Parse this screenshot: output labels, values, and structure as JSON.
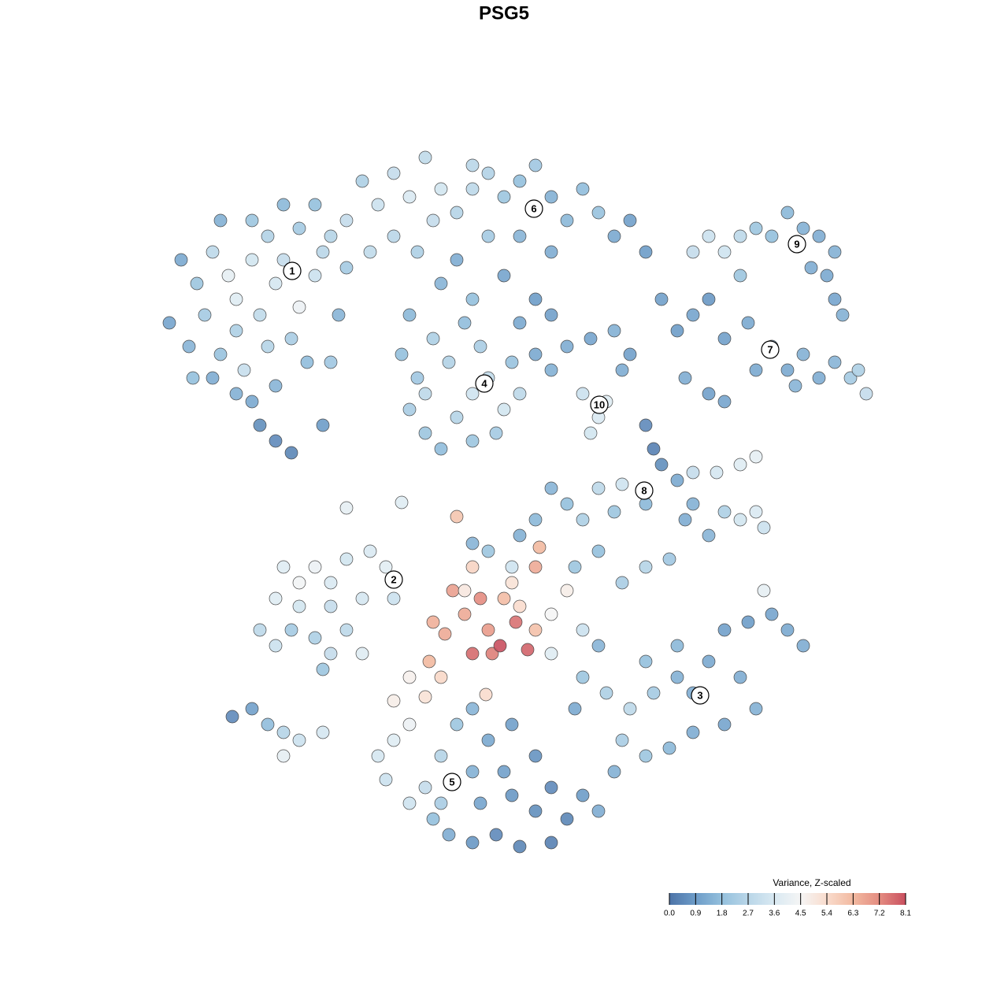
{
  "chart_data": {
    "type": "scatter",
    "title": "PSG5",
    "xlim": [
      180,
      1140
    ],
    "ylim": [
      1100,
      180
    ],
    "point_stroke": "#4a4a4a",
    "clusters": [
      {
        "label": "1",
        "x": 371,
        "y": 344
      },
      {
        "label": "2",
        "x": 500,
        "y": 736
      },
      {
        "label": "3",
        "x": 889,
        "y": 883
      },
      {
        "label": "4",
        "x": 615,
        "y": 487
      },
      {
        "label": "5",
        "x": 574,
        "y": 993
      },
      {
        "label": "6",
        "x": 678,
        "y": 265
      },
      {
        "label": "7",
        "x": 978,
        "y": 444
      },
      {
        "label": "8",
        "x": 818,
        "y": 623
      },
      {
        "label": "9",
        "x": 1012,
        "y": 310
      },
      {
        "label": "10",
        "x": 761,
        "y": 514
      }
    ],
    "colorbar": {
      "title": "Variance, Z-scaled",
      "ticks": [
        {
          "value": 0,
          "label": "0.0"
        },
        0.9,
        1.8,
        2.7,
        3.6,
        4.5,
        5.4,
        6.3,
        7.2,
        8.1
      ],
      "colors": [
        "#4d74a8",
        "#6d9cc8",
        "#94c0dd",
        "#b9d6e8",
        "#d9e9f2",
        "#f5f5f5",
        "#f9dccd",
        "#f2b9a0",
        "#e48c81",
        "#c9505f"
      ]
    },
    "points": [
      [
        230,
        330,
        1.2
      ],
      [
        250,
        360,
        2.0
      ],
      [
        215,
        410,
        1.1
      ],
      [
        240,
        440,
        1.5
      ],
      [
        270,
        320,
        2.8
      ],
      [
        290,
        350,
        4.0
      ],
      [
        300,
        380,
        3.8
      ],
      [
        320,
        330,
        3.4
      ],
      [
        340,
        300,
        2.5
      ],
      [
        360,
        260,
        1.6
      ],
      [
        380,
        290,
        2.2
      ],
      [
        400,
        260,
        1.8
      ],
      [
        420,
        300,
        2.6
      ],
      [
        440,
        280,
        3.0
      ],
      [
        350,
        360,
        3.5
      ],
      [
        380,
        390,
        4.2
      ],
      [
        400,
        350,
        3.2
      ],
      [
        410,
        320,
        2.7
      ],
      [
        330,
        400,
        2.9
      ],
      [
        300,
        420,
        2.4
      ],
      [
        280,
        450,
        1.9
      ],
      [
        310,
        470,
        3.1
      ],
      [
        340,
        440,
        2.6
      ],
      [
        370,
        430,
        2.3
      ],
      [
        390,
        460,
        1.7
      ],
      [
        350,
        490,
        1.5
      ],
      [
        320,
        510,
        1.2
      ],
      [
        330,
        540,
        0.6
      ],
      [
        350,
        560,
        0.5
      ],
      [
        370,
        575,
        0.4
      ],
      [
        410,
        540,
        0.9
      ],
      [
        300,
        500,
        1.4
      ],
      [
        270,
        480,
        1.3
      ],
      [
        430,
        400,
        1.5
      ],
      [
        420,
        460,
        2.1
      ],
      [
        280,
        280,
        1.4
      ],
      [
        320,
        280,
        2.0
      ],
      [
        245,
        480,
        1.8
      ],
      [
        260,
        400,
        2.2
      ],
      [
        360,
        330,
        3.0
      ],
      [
        460,
        230,
        2.4
      ],
      [
        480,
        260,
        3.2
      ],
      [
        500,
        220,
        3.0
      ],
      [
        520,
        250,
        3.6
      ],
      [
        540,
        200,
        2.9
      ],
      [
        560,
        240,
        3.4
      ],
      [
        550,
        280,
        3.0
      ],
      [
        580,
        270,
        2.6
      ],
      [
        600,
        240,
        2.8
      ],
      [
        620,
        220,
        2.5
      ],
      [
        640,
        250,
        2.0
      ],
      [
        660,
        230,
        1.8
      ],
      [
        700,
        250,
        1.4
      ],
      [
        720,
        280,
        1.6
      ],
      [
        740,
        240,
        1.7
      ],
      [
        760,
        270,
        1.9
      ],
      [
        780,
        300,
        1.2
      ],
      [
        800,
        280,
        1.0
      ],
      [
        620,
        300,
        2.2
      ],
      [
        660,
        300,
        1.5
      ],
      [
        700,
        320,
        1.3
      ],
      [
        500,
        300,
        2.7
      ],
      [
        470,
        320,
        2.9
      ],
      [
        440,
        340,
        2.2
      ],
      [
        530,
        320,
        2.4
      ],
      [
        580,
        330,
        1.3
      ],
      [
        820,
        320,
        0.9
      ],
      [
        680,
        210,
        2.1
      ],
      [
        600,
        210,
        2.7
      ],
      [
        560,
        360,
        1.5
      ],
      [
        600,
        380,
        1.8
      ],
      [
        640,
        350,
        1.1
      ],
      [
        680,
        380,
        0.9
      ],
      [
        700,
        400,
        1.0
      ],
      [
        520,
        400,
        1.6
      ],
      [
        660,
        410,
        1.2
      ],
      [
        510,
        450,
        1.8
      ],
      [
        530,
        480,
        2.1
      ],
      [
        520,
        520,
        2.3
      ],
      [
        540,
        550,
        2.0
      ],
      [
        560,
        570,
        1.7
      ],
      [
        580,
        530,
        2.6
      ],
      [
        600,
        500,
        3.3
      ],
      [
        620,
        480,
        2.9
      ],
      [
        640,
        520,
        3.4
      ],
      [
        630,
        550,
        2.2
      ],
      [
        600,
        560,
        2.0
      ],
      [
        570,
        460,
        2.5
      ],
      [
        610,
        440,
        2.3
      ],
      [
        650,
        460,
        1.9
      ],
      [
        550,
        430,
        2.4
      ],
      [
        590,
        410,
        1.7
      ],
      [
        660,
        500,
        2.8
      ],
      [
        540,
        500,
        2.8
      ],
      [
        680,
        450,
        1.2
      ],
      [
        700,
        470,
        1.4
      ],
      [
        720,
        440,
        1.3
      ],
      [
        750,
        430,
        1.1
      ],
      [
        780,
        420,
        1.4
      ],
      [
        800,
        450,
        1.0
      ],
      [
        740,
        500,
        3.2
      ],
      [
        760,
        530,
        3.6
      ],
      [
        770,
        510,
        3.8
      ],
      [
        750,
        550,
        3.4
      ],
      [
        790,
        470,
        1.3
      ],
      [
        840,
        380,
        1.0
      ],
      [
        860,
        420,
        0.9
      ],
      [
        880,
        400,
        1.1
      ],
      [
        900,
        380,
        0.8
      ],
      [
        920,
        430,
        1.0
      ],
      [
        950,
        410,
        1.2
      ],
      [
        980,
        440,
        1.3
      ],
      [
        1000,
        470,
        1.2
      ],
      [
        1020,
        450,
        1.4
      ],
      [
        1040,
        480,
        1.3
      ],
      [
        1060,
        460,
        1.5
      ],
      [
        1080,
        480,
        2.2
      ],
      [
        1100,
        500,
        3.0
      ],
      [
        1090,
        470,
        2.4
      ],
      [
        1010,
        490,
        1.5
      ],
      [
        960,
        470,
        1.2
      ],
      [
        900,
        500,
        1.0
      ],
      [
        870,
        480,
        1.3
      ],
      [
        920,
        510,
        1.1
      ],
      [
        880,
        320,
        3.0
      ],
      [
        900,
        300,
        3.2
      ],
      [
        920,
        320,
        3.3
      ],
      [
        940,
        300,
        2.8
      ],
      [
        960,
        290,
        2.0
      ],
      [
        980,
        300,
        1.8
      ],
      [
        1000,
        270,
        1.6
      ],
      [
        1020,
        290,
        1.4
      ],
      [
        1040,
        300,
        1.3
      ],
      [
        1060,
        320,
        1.4
      ],
      [
        1050,
        350,
        1.2
      ],
      [
        1030,
        340,
        1.3
      ],
      [
        1060,
        380,
        1.1
      ],
      [
        940,
        350,
        2.0
      ],
      [
        1070,
        400,
        1.4
      ],
      [
        820,
        540,
        0.5
      ],
      [
        830,
        570,
        0.3
      ],
      [
        840,
        590,
        0.6
      ],
      [
        860,
        610,
        1.2
      ],
      [
        880,
        640,
        1.4
      ],
      [
        900,
        680,
        1.5
      ],
      [
        920,
        650,
        2.4
      ],
      [
        940,
        660,
        3.4
      ],
      [
        960,
        650,
        3.6
      ],
      [
        970,
        670,
        3.2
      ],
      [
        910,
        600,
        3.5
      ],
      [
        940,
        590,
        3.8
      ],
      [
        960,
        580,
        4.0
      ],
      [
        880,
        600,
        3.0
      ],
      [
        870,
        660,
        1.3
      ],
      [
        700,
        620,
        1.5
      ],
      [
        720,
        640,
        1.8
      ],
      [
        760,
        620,
        2.8
      ],
      [
        790,
        615,
        3.3
      ],
      [
        740,
        660,
        2.4
      ],
      [
        680,
        660,
        1.6
      ],
      [
        660,
        680,
        1.4
      ],
      [
        780,
        650,
        2.0
      ],
      [
        820,
        640,
        1.6
      ],
      [
        360,
        720,
        3.8
      ],
      [
        380,
        740,
        4.4
      ],
      [
        400,
        720,
        4.2
      ],
      [
        420,
        740,
        3.6
      ],
      [
        440,
        710,
        3.4
      ],
      [
        470,
        700,
        3.6
      ],
      [
        490,
        720,
        3.9
      ],
      [
        500,
        760,
        3.2
      ],
      [
        460,
        760,
        3.5
      ],
      [
        420,
        770,
        3.0
      ],
      [
        380,
        770,
        3.4
      ],
      [
        350,
        760,
        3.8
      ],
      [
        330,
        800,
        2.8
      ],
      [
        350,
        820,
        3.2
      ],
      [
        370,
        800,
        2.2
      ],
      [
        400,
        810,
        2.4
      ],
      [
        420,
        830,
        3.0
      ],
      [
        440,
        800,
        2.8
      ],
      [
        410,
        850,
        2.0
      ],
      [
        460,
        830,
        3.8
      ],
      [
        295,
        910,
        0.5
      ],
      [
        320,
        900,
        1.0
      ],
      [
        340,
        920,
        1.7
      ],
      [
        360,
        930,
        2.6
      ],
      [
        380,
        940,
        3.2
      ],
      [
        360,
        960,
        4.0
      ],
      [
        410,
        930,
        3.5
      ],
      [
        440,
        645,
        4.0
      ],
      [
        510,
        638,
        3.8
      ],
      [
        580,
        656,
        6.0
      ],
      [
        575,
        750,
        6.8
      ],
      [
        590,
        780,
        6.6
      ],
      [
        610,
        760,
        7.2
      ],
      [
        620,
        800,
        6.9
      ],
      [
        640,
        760,
        6.2
      ],
      [
        660,
        770,
        5.4
      ],
      [
        680,
        800,
        6.1
      ],
      [
        670,
        825,
        7.8
      ],
      [
        655,
        790,
        7.6
      ],
      [
        600,
        830,
        7.7
      ],
      [
        625,
        830,
        7.4
      ],
      [
        565,
        805,
        6.6
      ],
      [
        550,
        790,
        6.5
      ],
      [
        635,
        820,
        8.1
      ],
      [
        685,
        695,
        6.3
      ],
      [
        680,
        720,
        6.6
      ],
      [
        600,
        720,
        5.6
      ],
      [
        720,
        750,
        4.8
      ],
      [
        700,
        780,
        4.5
      ],
      [
        650,
        740,
        5.2
      ],
      [
        590,
        750,
        5.0
      ],
      [
        545,
        840,
        6.3
      ],
      [
        560,
        860,
        5.5
      ],
      [
        520,
        860,
        4.7
      ],
      [
        540,
        885,
        5.2
      ],
      [
        500,
        890,
        4.8
      ],
      [
        617,
        882,
        5.4
      ],
      [
        700,
        830,
        3.8
      ],
      [
        740,
        800,
        3.2
      ],
      [
        620,
        700,
        2.0
      ],
      [
        600,
        690,
        1.5
      ],
      [
        650,
        720,
        3.3
      ],
      [
        730,
        720,
        2.0
      ],
      [
        760,
        700,
        1.8
      ],
      [
        790,
        740,
        2.3
      ],
      [
        820,
        720,
        2.6
      ],
      [
        850,
        710,
        2.1
      ],
      [
        740,
        860,
        2.0
      ],
      [
        770,
        880,
        2.4
      ],
      [
        800,
        900,
        2.8
      ],
      [
        830,
        880,
        2.2
      ],
      [
        860,
        860,
        1.4
      ],
      [
        880,
        880,
        1.3
      ],
      [
        900,
        840,
        1.2
      ],
      [
        920,
        800,
        1.0
      ],
      [
        950,
        790,
        0.9
      ],
      [
        980,
        780,
        1.1
      ],
      [
        1000,
        800,
        1.2
      ],
      [
        1020,
        820,
        1.3
      ],
      [
        940,
        860,
        1.3
      ],
      [
        960,
        900,
        1.4
      ],
      [
        920,
        920,
        1.1
      ],
      [
        880,
        930,
        1.3
      ],
      [
        850,
        950,
        1.6
      ],
      [
        820,
        960,
        2.0
      ],
      [
        790,
        940,
        2.3
      ],
      [
        780,
        980,
        1.4
      ],
      [
        860,
        820,
        1.6
      ],
      [
        820,
        840,
        1.8
      ],
      [
        760,
        820,
        1.5
      ],
      [
        970,
        750,
        4.0
      ],
      [
        730,
        900,
        1.2
      ],
      [
        480,
        960,
        3.5
      ],
      [
        500,
        940,
        3.8
      ],
      [
        520,
        920,
        4.2
      ],
      [
        490,
        990,
        3.2
      ],
      [
        520,
        1020,
        3.3
      ],
      [
        540,
        1000,
        3.0
      ],
      [
        560,
        960,
        2.6
      ],
      [
        580,
        920,
        2.0
      ],
      [
        600,
        900,
        1.5
      ],
      [
        620,
        940,
        1.2
      ],
      [
        650,
        920,
        1.0
      ],
      [
        680,
        960,
        0.7
      ],
      [
        700,
        1000,
        0.5
      ],
      [
        720,
        1040,
        0.4
      ],
      [
        700,
        1070,
        0.3
      ],
      [
        660,
        1075,
        0.4
      ],
      [
        630,
        1060,
        0.5
      ],
      [
        600,
        1070,
        0.8
      ],
      [
        570,
        1060,
        1.3
      ],
      [
        550,
        1040,
        1.8
      ],
      [
        560,
        1020,
        2.3
      ],
      [
        610,
        1020,
        1.1
      ],
      [
        650,
        1010,
        0.8
      ],
      [
        680,
        1030,
        0.6
      ],
      [
        740,
        1010,
        0.9
      ],
      [
        760,
        1030,
        1.3
      ],
      [
        600,
        980,
        1.4
      ],
      [
        640,
        980,
        1.0
      ]
    ]
  }
}
